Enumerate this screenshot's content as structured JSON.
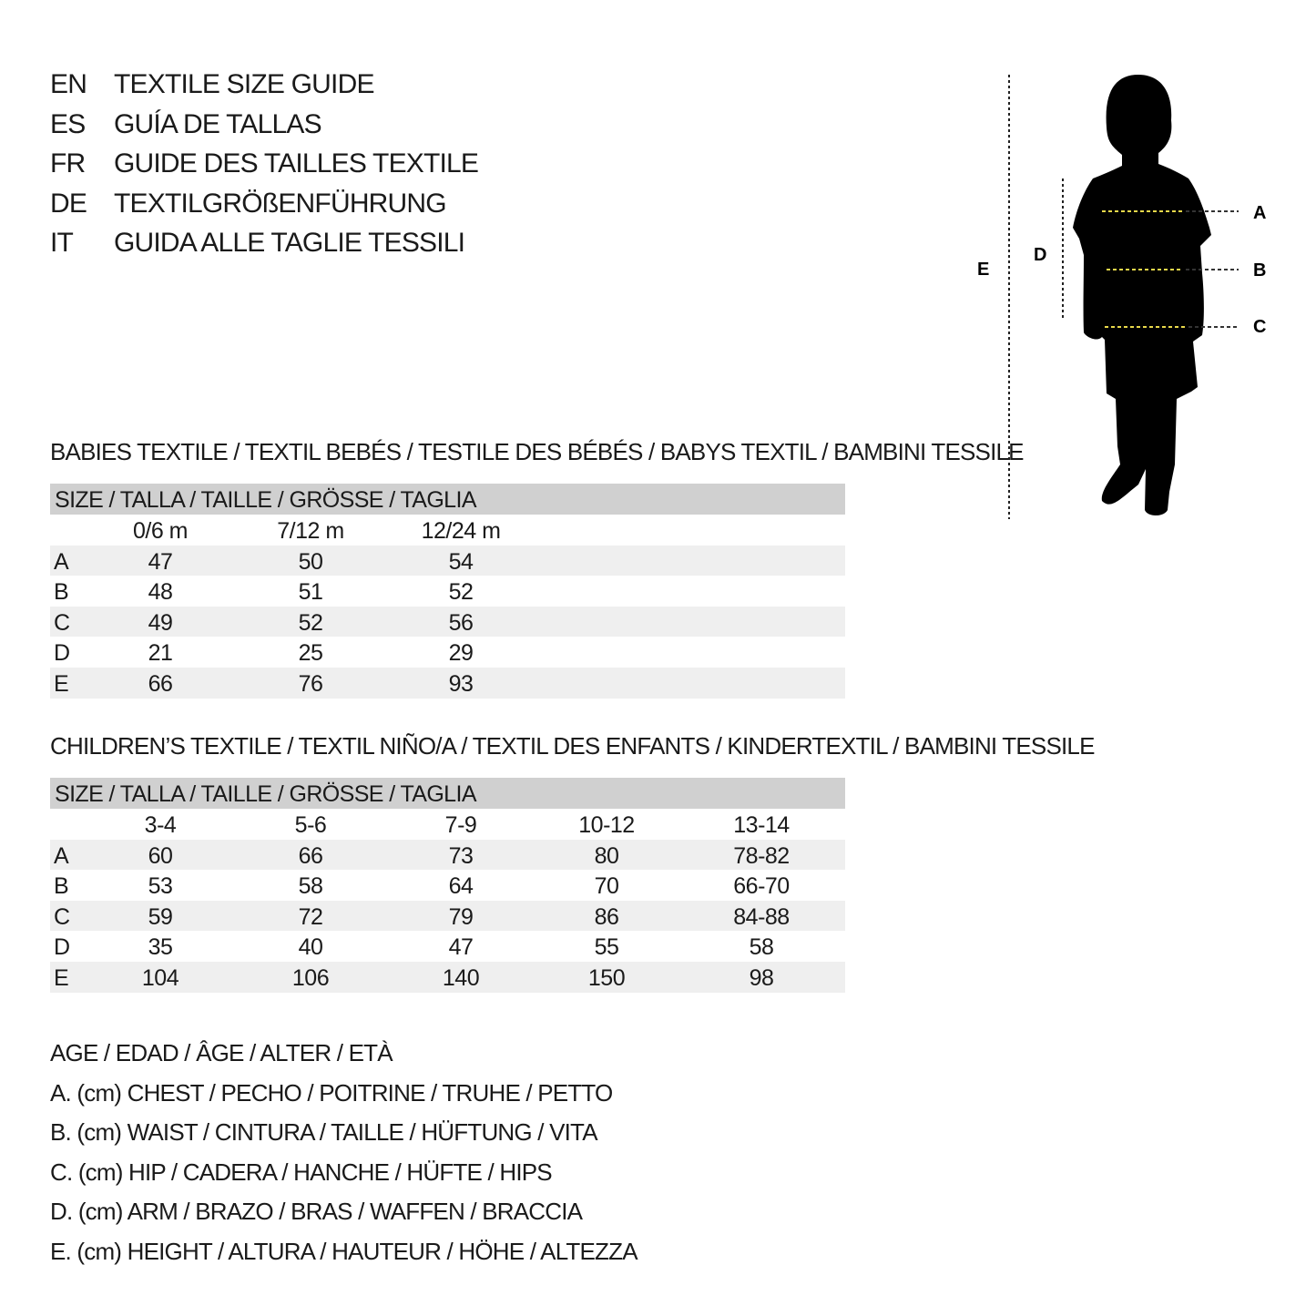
{
  "titles": [
    {
      "code": "EN",
      "text": "TEXTILE SIZE GUIDE"
    },
    {
      "code": "ES",
      "text": "GUÍA DE TALLAS"
    },
    {
      "code": "FR",
      "text": "GUIDE DES TAILLES TEXTILE"
    },
    {
      "code": "DE",
      "text": "TEXTILGRÖßENFÜHRUNG"
    },
    {
      "code": "IT",
      "text": "GUIDA ALLE TAGLIE TESSILI"
    }
  ],
  "figure": {
    "labels": {
      "a": "A",
      "b": "B",
      "c": "C",
      "d": "D",
      "e": "E"
    },
    "guide_color": "#e8d84a"
  },
  "babies": {
    "title": "BABIES TEXTILE / TEXTIL BEBÉS / TESTILE DES BÉBÉS / BABYS TEXTIL / BAMBINI TESSILE",
    "size_header": "SIZE / TALLA / TAILLE / GRÖSSE / TAGLIA",
    "columns": [
      "0/6 m",
      "7/12 m",
      "12/24 m"
    ],
    "rows": [
      {
        "label": "A",
        "values": [
          "47",
          "50",
          "54"
        ]
      },
      {
        "label": "B",
        "values": [
          "48",
          "51",
          "52"
        ]
      },
      {
        "label": "C",
        "values": [
          "49",
          "52",
          "56"
        ]
      },
      {
        "label": "D",
        "values": [
          "21",
          "25",
          "29"
        ]
      },
      {
        "label": "E",
        "values": [
          "66",
          "76",
          "93"
        ]
      }
    ]
  },
  "children": {
    "title": "CHILDREN’S TEXTILE / TEXTIL NIÑO/A / TEXTIL DES ENFANTS / KINDERTEXTIL / BAMBINI TESSILE",
    "size_header": "SIZE / TALLA / TAILLE / GRÖSSE / TAGLIA",
    "columns": [
      "3-4",
      "5-6",
      "7-9",
      "10-12",
      "13-14"
    ],
    "rows": [
      {
        "label": "A",
        "values": [
          "60",
          "66",
          "73",
          "80",
          "78-82"
        ]
      },
      {
        "label": "B",
        "values": [
          "53",
          "58",
          "64",
          "70",
          "66-70"
        ]
      },
      {
        "label": "C",
        "values": [
          "59",
          "72",
          "79",
          "86",
          "84-88"
        ]
      },
      {
        "label": "D",
        "values": [
          "35",
          "40",
          "47",
          "55",
          "58"
        ]
      },
      {
        "label": "E",
        "values": [
          "104",
          "106",
          "140",
          "150",
          "98"
        ]
      }
    ]
  },
  "legend": [
    "AGE / EDAD / ÂGE / ALTER / ETÀ",
    "A. (cm) CHEST / PECHO / POITRINE / TRUHE / PETTO",
    "B. (cm) WAIST / CINTURA / TAILLE / HÜFTUNG / VITA",
    "C. (cm) HIP / CADERA / HANCHE / HÜFTE / HIPS",
    "D. (cm) ARM / BRAZO / BRAS / WAFFEN / BRACCIA",
    "E. (cm) HEIGHT / ALTURA / HAUTEUR / HÖHE / ALTEZZA"
  ]
}
